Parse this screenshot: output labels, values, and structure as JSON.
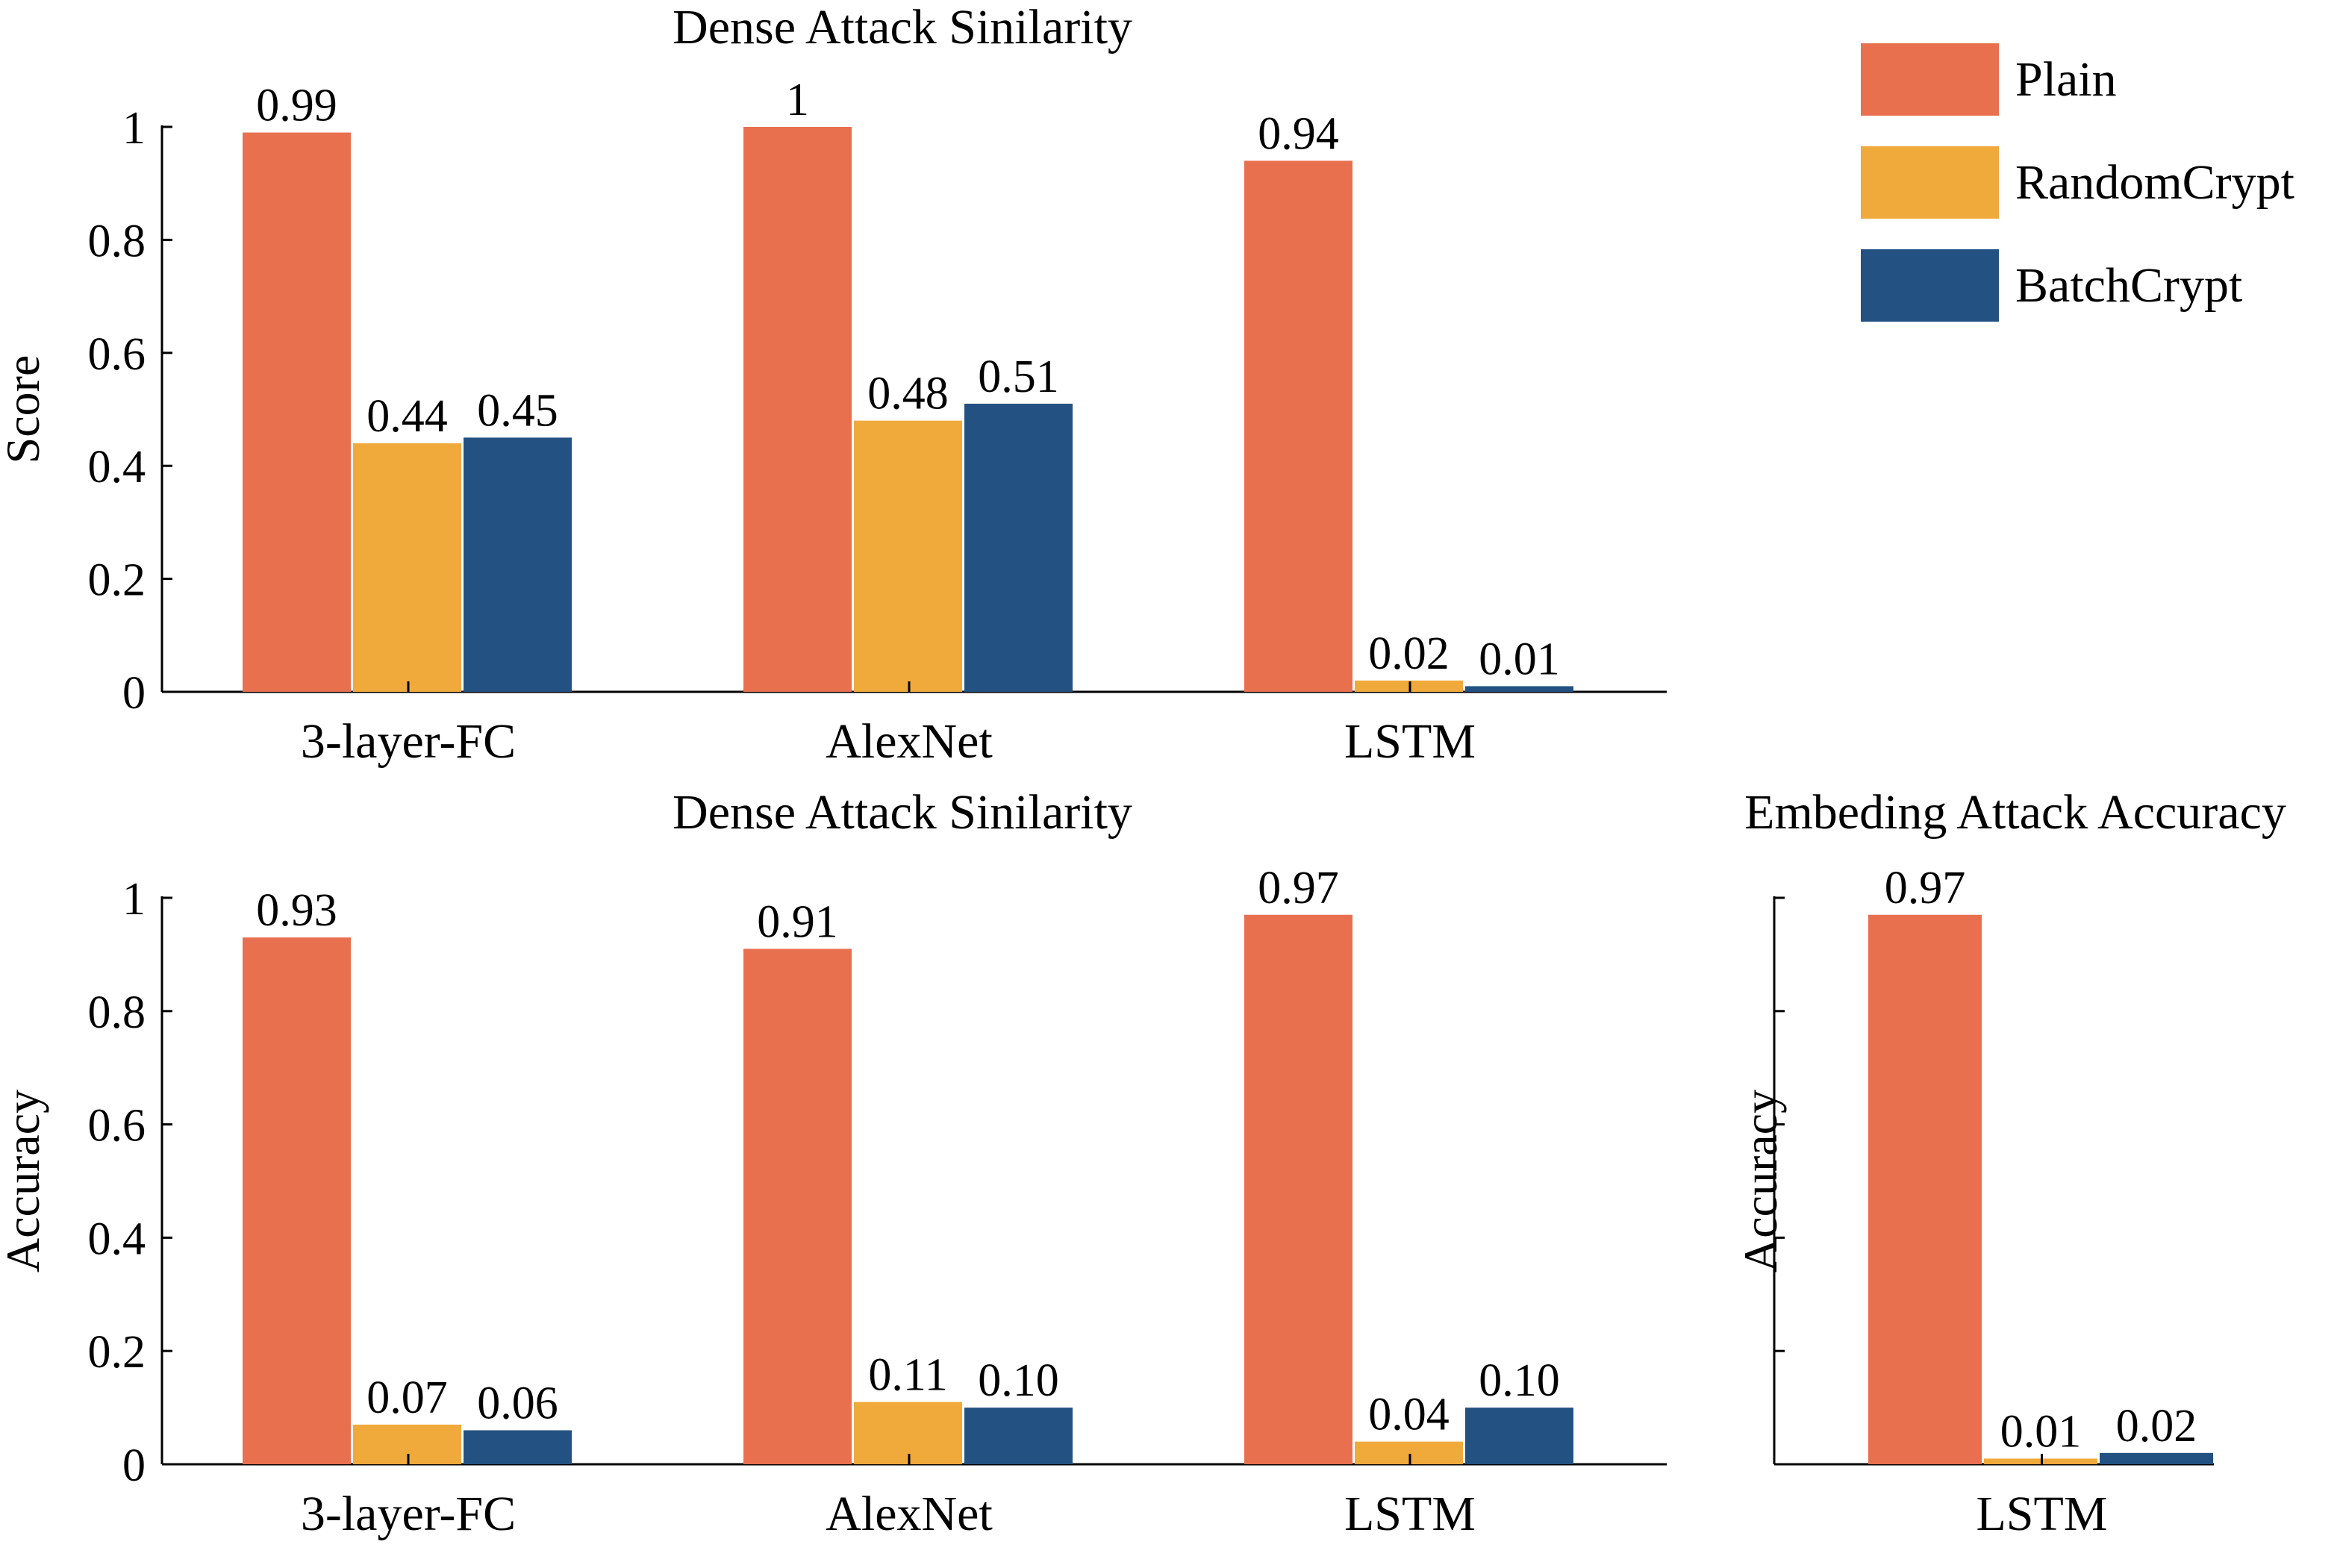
{
  "colors": {
    "plain": "#E8704F",
    "randomcrypt": "#F0AA3B",
    "batchcrypt": "#235282",
    "axis": "#000000"
  },
  "legend": {
    "items": [
      {
        "label": "Plain",
        "color": "#E8704F"
      },
      {
        "label": "RandomCrypt",
        "color": "#F0AA3B"
      },
      {
        "label": "BatchCrypt",
        "color": "#235282"
      }
    ]
  },
  "chart_data": [
    {
      "type": "bar",
      "title": "Dense Attack Sinilarity",
      "ylabel": "Score",
      "categories": [
        "3-layer-FC",
        "AlexNet",
        "LSTM"
      ],
      "ylim": [
        0,
        1
      ],
      "yticks": [
        "0",
        "0.2",
        "0.4",
        "0.6",
        "0.8",
        "1"
      ],
      "series": [
        {
          "name": "Plain",
          "values": [
            0.99,
            1,
            0.94
          ],
          "labels": [
            "0.99",
            "1",
            "0.94"
          ]
        },
        {
          "name": "RandomCrypt",
          "values": [
            0.44,
            0.48,
            0.02
          ],
          "labels": [
            "0.44",
            "0.48",
            "0.02"
          ]
        },
        {
          "name": "BatchCrypt",
          "values": [
            0.45,
            0.51,
            0.01
          ],
          "labels": [
            "0.45",
            "0.51",
            "0.01"
          ]
        }
      ]
    },
    {
      "type": "bar",
      "title": "Dense Attack Sinilarity",
      "ylabel": "Accuracy",
      "categories": [
        "3-layer-FC",
        "AlexNet",
        "LSTM"
      ],
      "ylim": [
        0,
        1
      ],
      "yticks": [
        "0",
        "0.2",
        "0.4",
        "0.6",
        "0.8",
        "1"
      ],
      "series": [
        {
          "name": "Plain",
          "values": [
            0.93,
            0.91,
            0.97
          ],
          "labels": [
            "0.93",
            "0.91",
            "0.97"
          ]
        },
        {
          "name": "RandomCrypt",
          "values": [
            0.07,
            0.11,
            0.04
          ],
          "labels": [
            "0.07",
            "0.11",
            "0.04"
          ]
        },
        {
          "name": "BatchCrypt",
          "values": [
            0.06,
            0.1,
            0.1
          ],
          "labels": [
            "0.06",
            "0.10",
            "0.10"
          ]
        }
      ]
    },
    {
      "type": "bar",
      "title": "Embeding Attack Accuracy",
      "ylabel": "Accuracy",
      "categories": [
        "LSTM"
      ],
      "ylim": [
        0,
        1
      ],
      "yticks": [
        "",
        "",
        "",
        "",
        "",
        ""
      ],
      "series": [
        {
          "name": "Plain",
          "values": [
            0.97
          ],
          "labels": [
            "0.97"
          ]
        },
        {
          "name": "RandomCrypt",
          "values": [
            0.01
          ],
          "labels": [
            "0.01"
          ]
        },
        {
          "name": "BatchCrypt",
          "values": [
            0.02
          ],
          "labels": [
            "0.02"
          ]
        }
      ]
    }
  ]
}
